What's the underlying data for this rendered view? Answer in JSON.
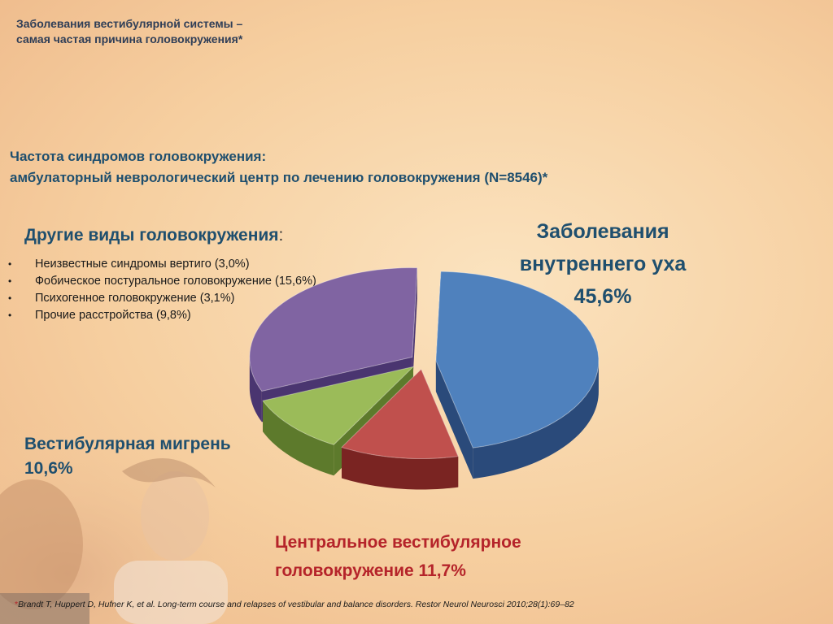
{
  "slide": {
    "title_line1": "Заболевания вестибулярной системы –",
    "title_line2": "самая частая причина головокружения*",
    "subtitle_line1": "Частота синдромов головокружения:",
    "subtitle_line2": "амбулаторный неврологический центр по лечению головокружения (N=8546)*",
    "other_heading": "Другие виды головокружения",
    "other_heading_colon": ":",
    "other_items": [
      "Неизвестные синдромы вертиго (3,0%)",
      "Фобическое постуральное головокружение (15,6%)",
      "Психогенное головокружение (3,1%)",
      "Прочие расстройства (9,8%)"
    ],
    "footnote_marker": "*",
    "footnote": "Brandt T, Huppert D, Hufner K, et al. Long-term course and relapses of vestibular and balance disorders. Restor Neurol Neurosci 2010;28(1):69–82"
  },
  "chart_data": {
    "type": "pie",
    "title": "",
    "slices": [
      {
        "label_line1": "Заболевания",
        "label_line2": "внутреннего уха",
        "value_label": "45,6%",
        "value": 45.6,
        "color": "#4f81bd",
        "side": "#2a4a7a"
      },
      {
        "label_line1": "Центральное вестибулярное",
        "label_line2": "головокружение 11,7%",
        "value": 11.7,
        "color": "#c0504d",
        "side": "#7a2422"
      },
      {
        "label_line1": "Вестибулярная мигрень",
        "label_line2": "10,6%",
        "value": 10.6,
        "color": "#9bbb59",
        "side": "#5d7a2c"
      },
      {
        "label_line1": "Другие виды головокружения",
        "value": 31.5,
        "color": "#8064a2",
        "side": "#4a3570"
      }
    ]
  }
}
